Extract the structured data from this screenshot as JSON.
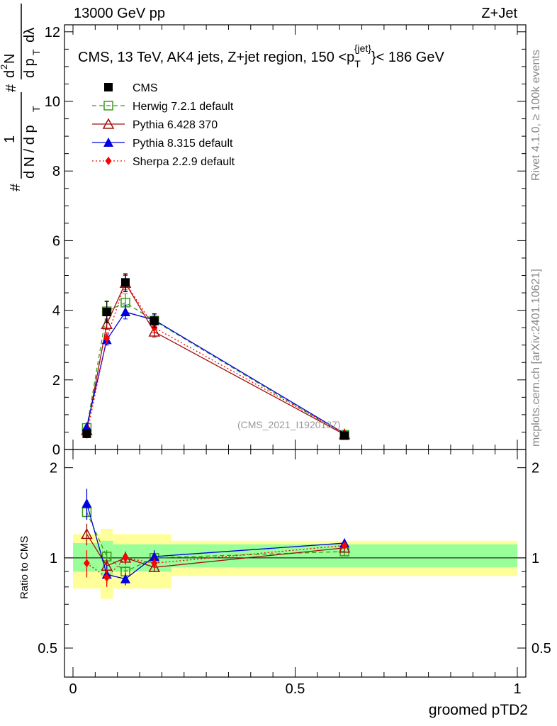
{
  "header": {
    "left": "13000 GeV pp",
    "right": "Z+Jet"
  },
  "side": {
    "rivet": "Rivet 4.1.0, ≥ 100k events",
    "mcplots": "mcplots.cern.ch [arXiv:2401.10621]"
  },
  "chart_data": [
    {
      "type": "line",
      "title": "CMS, 13 TeV, AK4 jets, Z+jet region, 150 <p_T^{jet}< 186 GeV",
      "title_parts": {
        "prefix": "CMS, 13 TeV, AK4 jets, Z+jet region, 150 <p",
        "sub": "T",
        "sup": "{jet}",
        "suffix": "}< 186 GeV"
      },
      "ylabel_parts": {
        "hash": "#",
        "one": "1",
        "dn": "d N / d p",
        "dn_sub": "T",
        "d2n": "d",
        "d2n_sup": "2",
        "d2n_tail": "N",
        "dpt": "d p",
        "dpt_sub": "T",
        "dlambda": "dλ"
      },
      "xlim": [
        0,
        1
      ],
      "ylim": [
        0,
        12.2
      ],
      "yticks": [
        0,
        2,
        4,
        6,
        8,
        10,
        12
      ],
      "watermark": "(CMS_2021_I1920187)",
      "series": [
        {
          "name": "CMS",
          "legend": "CMS",
          "color": "#000000",
          "x": [
            0.031,
            0.076,
            0.118,
            0.183,
            0.611
          ],
          "y": [
            0.45,
            3.95,
            4.8,
            3.7,
            0.4
          ],
          "yerr": [
            0.05,
            0.3,
            0.25,
            0.2,
            0.05
          ]
        },
        {
          "name": "Herwig 7.2.1 default",
          "legend": "Herwig 7.2.1 default",
          "color": "#3a9a1c",
          "x": [
            0.031,
            0.076,
            0.118,
            0.183,
            0.611
          ],
          "y": [
            0.62,
            3.97,
            4.22,
            3.7,
            0.42
          ],
          "yerr": [
            0.03,
            0.3,
            0.25,
            0.2,
            0.03
          ]
        },
        {
          "name": "Pythia 6.428 370",
          "legend": "Pythia 6.428 370",
          "color": "#a01010",
          "x": [
            0.031,
            0.076,
            0.118,
            0.183,
            0.611
          ],
          "y": [
            0.55,
            3.6,
            4.78,
            3.38,
            0.43
          ],
          "yerr": [
            0.03,
            0.15,
            0.25,
            0.15,
            0.03
          ]
        },
        {
          "name": "Pythia 8.315 default",
          "legend": "Pythia 8.315 default",
          "color": "#0000e0",
          "x": [
            0.031,
            0.076,
            0.118,
            0.183,
            0.611
          ],
          "y": [
            0.65,
            3.15,
            3.95,
            3.72,
            0.46
          ],
          "yerr": [
            0.03,
            0.15,
            0.2,
            0.15,
            0.03
          ]
        },
        {
          "name": "Sherpa 2.2.9 default",
          "legend": "Sherpa 2.2.9 default",
          "color": "#ff0000",
          "x": [
            0.031,
            0.076,
            0.118,
            0.183,
            0.611
          ],
          "y": [
            0.43,
            3.2,
            4.8,
            3.5,
            0.46
          ],
          "yerr": [
            0.03,
            0.15,
            0.2,
            0.15,
            0.03
          ]
        }
      ]
    },
    {
      "type": "line",
      "title": "Ratio to CMS",
      "ylabel": "Ratio to CMS",
      "xlabel": "groomed pTD2",
      "xlim": [
        0,
        1
      ],
      "ylim": [
        0.4,
        2.3
      ],
      "yticks": [
        0.5,
        1,
        2
      ],
      "ytick_labels": [
        "0.5",
        "1",
        "2"
      ],
      "xticks": [
        0,
        0.5,
        1
      ],
      "xtick_labels": [
        "0",
        "0.5",
        "1"
      ],
      "bands": {
        "edges": [
          0,
          0.062,
          0.09,
          0.146,
          0.221,
          1
        ],
        "green": [
          [
            0.9,
            1.12
          ],
          [
            0.87,
            1.14
          ],
          [
            0.9,
            1.11
          ],
          [
            0.9,
            1.11
          ],
          [
            0.93,
            1.11
          ]
        ],
        "yellow": [
          [
            0.79,
            1.2
          ],
          [
            0.73,
            1.25
          ],
          [
            0.79,
            1.2
          ],
          [
            0.79,
            1.2
          ],
          [
            0.87,
            1.14
          ]
        ]
      },
      "series": [
        {
          "name": "Herwig 7.2.1 default",
          "color": "#3a9a1c",
          "y": [
            1.42,
            1.01,
            0.9,
            1.0,
            1.05
          ],
          "yerr": [
            0.08,
            0.05,
            0.04,
            0.04,
            0.03
          ]
        },
        {
          "name": "Pythia 6.428 370",
          "color": "#a01010",
          "y": [
            1.2,
            0.94,
            1.0,
            0.93,
            1.08
          ],
          "yerr": [
            0.1,
            0.05,
            0.05,
            0.03,
            0.03
          ]
        },
        {
          "name": "Pythia 8.315 default",
          "color": "#0000e0",
          "y": [
            1.52,
            0.88,
            0.85,
            1.01,
            1.12
          ],
          "yerr": [
            0.18,
            0.06,
            0.04,
            0.05,
            0.04
          ]
        },
        {
          "name": "Sherpa 2.2.9 default",
          "color": "#ff0000",
          "y": [
            0.96,
            0.86,
            1.0,
            0.96,
            1.1
          ],
          "yerr": [
            0.1,
            0.06,
            0.05,
            0.04,
            0.03
          ]
        }
      ]
    }
  ]
}
